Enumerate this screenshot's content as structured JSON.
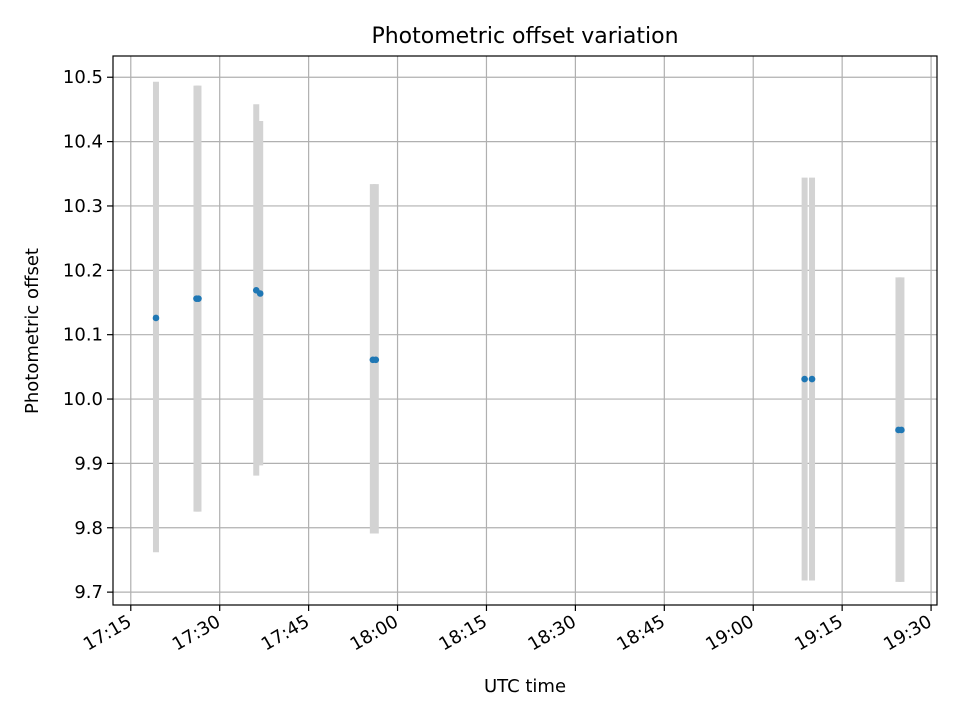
{
  "chart_data": {
    "type": "scatter",
    "title": "Photometric offset variation",
    "xlabel": "UTC time",
    "ylabel": "Photometric offset",
    "x_axis_kind": "time",
    "xlim": [
      "17:12",
      "19:31"
    ],
    "ylim": [
      9.68,
      10.533
    ],
    "x_ticks": [
      "17:15",
      "17:30",
      "17:45",
      "18:00",
      "18:15",
      "18:30",
      "18:45",
      "19:00",
      "19:15",
      "19:30"
    ],
    "y_ticks": [
      "9.7",
      "9.8",
      "9.9",
      "10.0",
      "10.1",
      "10.2",
      "10.3",
      "10.4",
      "10.5"
    ],
    "y_tick_values": [
      9.7,
      9.8,
      9.9,
      10.0,
      10.1,
      10.2,
      10.3,
      10.4,
      10.5
    ],
    "grid": true,
    "point_color": "#1f77b4",
    "errorbar_color": "#d3d3d3",
    "points": [
      {
        "t": "17:19:15",
        "y": 10.126,
        "err_low": 9.762,
        "err_high": 10.493
      },
      {
        "t": "17:26:05",
        "y": 10.156,
        "err_low": 9.825,
        "err_high": 10.487
      },
      {
        "t": "17:26:25",
        "y": 10.156,
        "err_low": 9.825,
        "err_high": 10.487
      },
      {
        "t": "17:36:10",
        "y": 10.169,
        "err_low": 9.881,
        "err_high": 10.458
      },
      {
        "t": "17:36:50",
        "y": 10.164,
        "err_low": 9.897,
        "err_high": 10.432
      },
      {
        "t": "17:55:50",
        "y": 10.061,
        "err_low": 9.791,
        "err_high": 10.334
      },
      {
        "t": "17:56:20",
        "y": 10.061,
        "err_low": 9.791,
        "err_high": 10.334
      },
      {
        "t": "19:08:40",
        "y": 10.031,
        "err_low": 9.718,
        "err_high": 10.344
      },
      {
        "t": "19:09:55",
        "y": 10.031,
        "err_low": 9.718,
        "err_high": 10.344
      },
      {
        "t": "19:24:30",
        "y": 9.952,
        "err_low": 9.716,
        "err_high": 10.189
      },
      {
        "t": "19:25:00",
        "y": 9.952,
        "err_low": 9.716,
        "err_high": 10.189
      }
    ]
  }
}
